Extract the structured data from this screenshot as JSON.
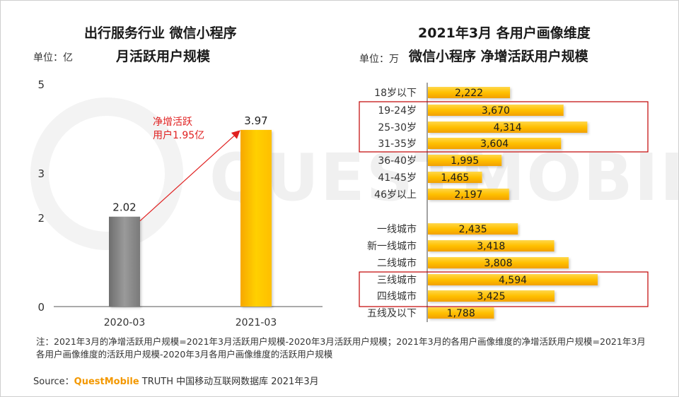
{
  "left": {
    "title_line1": "出行服务行业 微信小程序",
    "title_line2": "月活跃用户规模",
    "unit": "单位：亿",
    "annotation_line1": "净增活跃",
    "annotation_line2": "用户1.95亿"
  },
  "right": {
    "title_line1": "2021年3月 各用户画像维度",
    "title_line2": "微信小程序 净增活跃用户规模",
    "unit": "单位：万"
  },
  "watermark": "QUESTMOBILE",
  "note": "注：2021年3月的净增活跃用户规模=2021年3月活跃用户规模-2020年3月活跃用户规模；2021年3月的各用户画像维度的净增活跃用户规模=2021年3月各用户画像维度的活跃用户规模-2020年3月各用户画像维度的活跃用户规模",
  "source": {
    "prefix": "Source：",
    "brand": "QuestMobile",
    "rest": " TRUTH 中国移动互联网数据库 2021年3月"
  },
  "colors": {
    "gold": "#ffc000",
    "gold_dark": "#f5a800",
    "gray": "#8c8c8c",
    "red": "#e02020"
  },
  "chart_data": [
    {
      "type": "bar",
      "title": "出行服务行业 微信小程序 月活跃用户规模",
      "ylabel": "单位：亿",
      "categories": [
        "2020-03",
        "2021-03"
      ],
      "values": [
        2.02,
        3.97
      ],
      "value_labels": [
        "2.02",
        "3.97"
      ],
      "yticks": [
        0,
        2,
        3,
        5
      ],
      "ylim": [
        0,
        5
      ],
      "annotation": "净增活跃用户1.95亿"
    },
    {
      "type": "bar",
      "orientation": "horizontal",
      "title": "2021年3月 各用户画像维度 微信小程序 净增活跃用户规模",
      "unit": "单位：万",
      "categories": [
        "18岁以下",
        "19-24岁",
        "25-30岁",
        "31-35岁",
        "36-40岁",
        "41-45岁",
        "46岁以上",
        "一线城市",
        "新一线城市",
        "二线城市",
        "三线城市",
        "四线城市",
        "五线及以下"
      ],
      "values": [
        2222,
        3670,
        4314,
        3604,
        1995,
        1465,
        2197,
        2435,
        3418,
        3808,
        4594,
        3425,
        1788
      ],
      "value_labels": [
        "2,222",
        "3,670",
        "4,314",
        "3,604",
        "1,995",
        "1,465",
        "2,197",
        "2,435",
        "3,418",
        "3,808",
        "4,594",
        "3,425",
        "1,788"
      ],
      "highlighted": [
        "19-24岁",
        "25-30岁",
        "31-35岁",
        "三线城市",
        "四线城市"
      ]
    }
  ]
}
